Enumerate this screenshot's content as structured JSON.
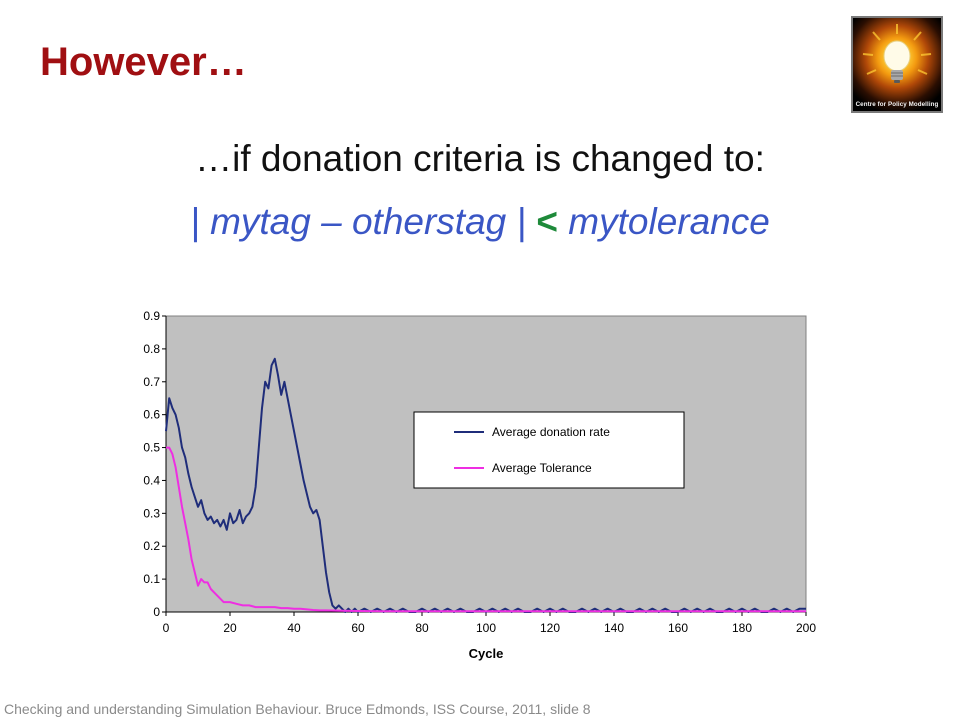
{
  "slide": {
    "title": "However…",
    "subtitle": "…if donation criteria is changed to:",
    "formula": {
      "part1": "| mytag – otherstag |",
      "op": "<",
      "part2": "mytolerance"
    },
    "logo_text": "Centre for Policy Modelling",
    "footer": "Checking and understanding Simulation Behaviour. Bruce Edmonds,  ISS Course, 2011,  slide 8"
  },
  "colors": {
    "title": "#a00f12",
    "formula": "#3a56c5",
    "operator": "#1e8a3a",
    "plot_bg": "#c0c0c0",
    "donation": "#1f2d7a",
    "tolerance": "#ee2ee2"
  },
  "chart_data": {
    "type": "line",
    "xlabel": "Cycle",
    "ylabel": "",
    "xlim": [
      0,
      200
    ],
    "ylim": [
      0,
      0.9
    ],
    "x_ticks": [
      0,
      20,
      40,
      60,
      80,
      100,
      120,
      140,
      160,
      180,
      200
    ],
    "y_ticks": [
      0,
      0.1,
      0.2,
      0.3,
      0.4,
      0.5,
      0.6,
      0.7,
      0.8,
      0.9
    ],
    "grid": false,
    "legend_position": "center-right",
    "series": [
      {
        "name": "Average donation rate",
        "color": "#1f2d7a",
        "x": [
          0,
          1,
          2,
          3,
          4,
          5,
          6,
          7,
          8,
          9,
          10,
          11,
          12,
          13,
          14,
          15,
          16,
          17,
          18,
          19,
          20,
          21,
          22,
          23,
          24,
          25,
          26,
          27,
          28,
          29,
          30,
          31,
          32,
          33,
          34,
          35,
          36,
          37,
          38,
          39,
          40,
          41,
          42,
          43,
          44,
          45,
          46,
          47,
          48,
          49,
          50,
          51,
          52,
          53,
          54,
          55,
          56,
          57,
          58,
          59,
          60,
          62,
          64,
          66,
          68,
          70,
          72,
          74,
          76,
          78,
          80,
          82,
          84,
          86,
          88,
          90,
          92,
          94,
          96,
          98,
          100,
          102,
          104,
          106,
          108,
          110,
          112,
          114,
          116,
          118,
          120,
          122,
          124,
          126,
          128,
          130,
          132,
          134,
          136,
          138,
          140,
          142,
          144,
          146,
          148,
          150,
          152,
          154,
          156,
          158,
          160,
          162,
          164,
          166,
          168,
          170,
          172,
          174,
          176,
          178,
          180,
          182,
          184,
          186,
          188,
          190,
          192,
          194,
          196,
          198,
          200
        ],
        "y": [
          0.55,
          0.65,
          0.62,
          0.6,
          0.56,
          0.5,
          0.47,
          0.42,
          0.38,
          0.35,
          0.32,
          0.34,
          0.3,
          0.28,
          0.29,
          0.27,
          0.28,
          0.26,
          0.28,
          0.25,
          0.3,
          0.27,
          0.28,
          0.31,
          0.27,
          0.29,
          0.3,
          0.32,
          0.38,
          0.5,
          0.62,
          0.7,
          0.68,
          0.75,
          0.77,
          0.72,
          0.66,
          0.7,
          0.65,
          0.6,
          0.55,
          0.5,
          0.45,
          0.4,
          0.36,
          0.32,
          0.3,
          0.31,
          0.28,
          0.2,
          0.12,
          0.06,
          0.02,
          0.01,
          0.02,
          0.01,
          0.0,
          0.01,
          0.0,
          0.01,
          0.0,
          0.01,
          0.0,
          0.01,
          0.0,
          0.01,
          0.0,
          0.01,
          0.0,
          0.0,
          0.01,
          0.0,
          0.01,
          0.0,
          0.01,
          0.0,
          0.01,
          0.0,
          0.0,
          0.01,
          0.0,
          0.01,
          0.0,
          0.01,
          0.0,
          0.01,
          0.0,
          0.0,
          0.01,
          0.0,
          0.01,
          0.0,
          0.01,
          0.0,
          0.0,
          0.01,
          0.0,
          0.01,
          0.0,
          0.01,
          0.0,
          0.01,
          0.0,
          0.0,
          0.01,
          0.0,
          0.01,
          0.0,
          0.01,
          0.0,
          0.0,
          0.01,
          0.0,
          0.01,
          0.0,
          0.01,
          0.0,
          0.0,
          0.01,
          0.0,
          0.01,
          0.0,
          0.01,
          0.0,
          0.0,
          0.01,
          0.0,
          0.01,
          0.0,
          0.01,
          0.01
        ]
      },
      {
        "name": "Average Tolerance",
        "color": "#ee2ee2",
        "x": [
          0,
          1,
          2,
          3,
          4,
          5,
          6,
          7,
          8,
          9,
          10,
          11,
          12,
          13,
          14,
          15,
          16,
          17,
          18,
          20,
          22,
          24,
          26,
          28,
          30,
          32,
          34,
          36,
          38,
          40,
          42,
          44,
          46,
          48,
          50,
          55,
          60,
          70,
          80,
          100,
          120,
          140,
          160,
          180,
          200
        ],
        "y": [
          0.5,
          0.5,
          0.48,
          0.44,
          0.38,
          0.32,
          0.27,
          0.22,
          0.16,
          0.12,
          0.08,
          0.1,
          0.09,
          0.09,
          0.07,
          0.06,
          0.05,
          0.04,
          0.03,
          0.03,
          0.025,
          0.02,
          0.02,
          0.015,
          0.015,
          0.015,
          0.015,
          0.012,
          0.012,
          0.01,
          0.01,
          0.008,
          0.006,
          0.005,
          0.005,
          0.004,
          0.003,
          0.002,
          0.002,
          0.002,
          0.002,
          0.002,
          0.002,
          0.002,
          0.002
        ]
      }
    ]
  }
}
